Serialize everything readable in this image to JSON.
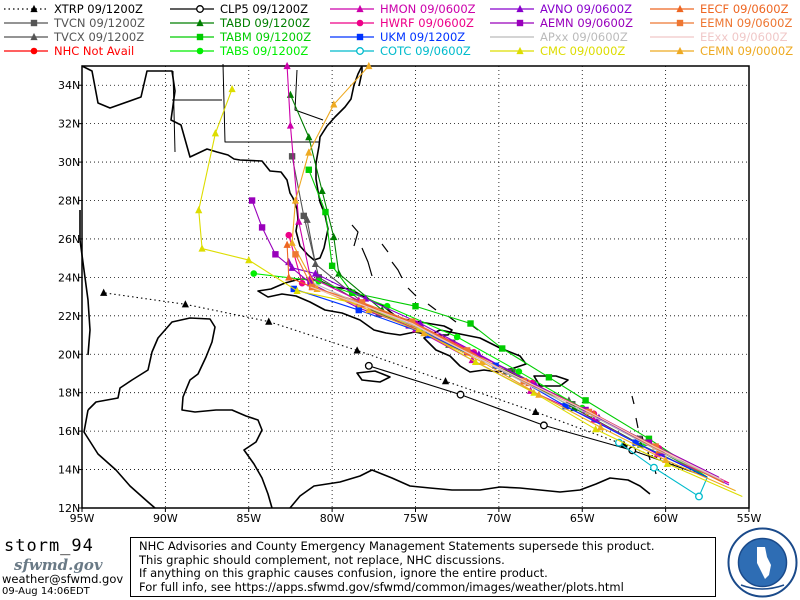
{
  "legend": [
    {
      "label": "XTRP  09/1200Z",
      "color": "#000000",
      "marker": "tri-up",
      "dash": "dot"
    },
    {
      "label": "TVCN  09/1200Z",
      "color": "#555555",
      "marker": "square",
      "dash": "solid"
    },
    {
      "label": "TVCX  09/1200Z",
      "color": "#555555",
      "marker": "tri-up",
      "dash": "solid"
    },
    {
      "label": "NHC  Not Avail",
      "color": "#ff0000",
      "marker": "circle",
      "dash": "solid"
    },
    {
      "label": "CLP5  09/1200Z",
      "color": "#000000",
      "marker": "open-circle",
      "dash": "solid"
    },
    {
      "label": "TABD  09/1200Z",
      "color": "#007f00",
      "marker": "tri-up",
      "dash": "solid"
    },
    {
      "label": "TABM  09/1200Z",
      "color": "#00cc00",
      "marker": "square",
      "dash": "solid"
    },
    {
      "label": "TABS  09/1200Z",
      "color": "#00ee00",
      "marker": "circle",
      "dash": "solid"
    },
    {
      "label": "HMON  09/0600Z",
      "color": "#cc00aa",
      "marker": "tri-up",
      "dash": "solid"
    },
    {
      "label": "HWRF  09/0600Z",
      "color": "#ee0088",
      "marker": "circle",
      "dash": "solid"
    },
    {
      "label": "UKM   09/1200Z",
      "color": "#0033ff",
      "marker": "square",
      "dash": "solid"
    },
    {
      "label": "COTC  09/0600Z",
      "color": "#00bbcc",
      "marker": "open-circle",
      "dash": "solid"
    },
    {
      "label": "AVNO  09/0600Z",
      "color": "#8800cc",
      "marker": "tri-up",
      "dash": "solid"
    },
    {
      "label": "AEMN  09/0600Z",
      "color": "#9900bb",
      "marker": "square",
      "dash": "solid"
    },
    {
      "label": "APxx  09/0600Z",
      "color": "#bbbbbb",
      "marker": "none",
      "dash": "solid"
    },
    {
      "label": "CMC   09/0000Z",
      "color": "#dddd00",
      "marker": "tri-up",
      "dash": "solid"
    },
    {
      "label": "EECF  09/0600Z",
      "color": "#ee6622",
      "marker": "tri-up",
      "dash": "solid"
    },
    {
      "label": "EEMN  09/0600Z",
      "color": "#ee7733",
      "marker": "square",
      "dash": "solid"
    },
    {
      "label": "EExx  09/0600Z",
      "color": "#f0c8c8",
      "marker": "none",
      "dash": "solid"
    },
    {
      "label": "CEMN  09/0000Z",
      "color": "#eeaa22",
      "marker": "tri-up",
      "dash": "solid"
    }
  ],
  "axes": {
    "lat_labels": [
      "12N",
      "14N",
      "16N",
      "18N",
      "20N",
      "22N",
      "24N",
      "26N",
      "28N",
      "30N",
      "32N",
      "34N"
    ],
    "lon_labels": [
      "95W",
      "90W",
      "85W",
      "80W",
      "75W",
      "70W",
      "65W",
      "60W",
      "55W"
    ]
  },
  "footer": {
    "storm_name": "storm_94",
    "logo_text": "sfwmd.gov",
    "email": "weather@sfwmd.gov",
    "timestamp": "09-Aug 14:06EDT",
    "disclaimer_lines": [
      "NHC Advisories and County Emergency Management Statements supersede this product.",
      "This graphic should complement, not replace, NHC discussions.",
      "If anything on this graphic causes confusion, ignore the entire product.",
      "For full info, see  https://apps.sfwmd.gov/sfwmd/common/images/weather/plots.html"
    ]
  },
  "tracks": [
    {
      "model": "XTRP",
      "color": "#000000",
      "dash": "dot",
      "marker": "tri-up",
      "points": [
        [
          -57.5,
          13.6
        ],
        [
          -62.5,
          15.3
        ],
        [
          -67.8,
          17.0
        ],
        [
          -73.2,
          18.6
        ],
        [
          -78.5,
          20.2
        ],
        [
          -83.8,
          21.7
        ],
        [
          -88.8,
          22.6
        ],
        [
          -93.7,
          23.2
        ]
      ]
    },
    {
      "model": "CLP5",
      "color": "#000000",
      "dash": "solid",
      "marker": "open-circle",
      "points": [
        [
          -57.5,
          13.6
        ],
        [
          -62.0,
          15.0
        ],
        [
          -67.3,
          16.3
        ],
        [
          -72.3,
          17.9
        ],
        [
          -77.8,
          19.4
        ]
      ]
    },
    {
      "model": "TVCN",
      "color": "#555555",
      "dash": "solid",
      "marker": "square",
      "points": [
        [
          -57.5,
          13.6
        ],
        [
          -61.6,
          15.6
        ],
        [
          -65.6,
          17.4
        ],
        [
          -69.2,
          19.1
        ],
        [
          -72.8,
          20.6
        ],
        [
          -77.2,
          22.1
        ],
        [
          -80.8,
          24.0
        ],
        [
          -81.7,
          27.2
        ],
        [
          -82.4,
          30.3
        ]
      ]
    },
    {
      "model": "TVCX",
      "color": "#555555",
      "dash": "solid",
      "marker": "tri-up",
      "points": [
        [
          -57.5,
          13.6
        ],
        [
          -61.7,
          15.6
        ],
        [
          -65.8,
          17.6
        ],
        [
          -69.6,
          19.1
        ],
        [
          -73.3,
          20.8
        ],
        [
          -77.6,
          22.3
        ],
        [
          -81.0,
          24.7
        ],
        [
          -81.5,
          27.0
        ]
      ]
    },
    {
      "model": "TABD",
      "color": "#007f00",
      "dash": "solid",
      "marker": "tri-up",
      "points": [
        [
          -57.5,
          13.6
        ],
        [
          -61.5,
          15.3
        ],
        [
          -65.5,
          17.2
        ],
        [
          -69.2,
          19.0
        ],
        [
          -73.0,
          20.5
        ],
        [
          -77.0,
          22.3
        ],
        [
          -79.6,
          24.2
        ],
        [
          -79.9,
          26.1
        ],
        [
          -80.6,
          28.5
        ],
        [
          -81.4,
          31.3
        ],
        [
          -82.5,
          33.5
        ]
      ]
    },
    {
      "model": "TABM",
      "color": "#00cc00",
      "dash": "solid",
      "marker": "square",
      "points": [
        [
          -57.5,
          13.6
        ],
        [
          -61.0,
          15.6
        ],
        [
          -64.8,
          17.6
        ],
        [
          -67.0,
          18.8
        ],
        [
          -69.8,
          20.3
        ],
        [
          -71.7,
          21.6
        ],
        [
          -75.0,
          22.5
        ],
        [
          -78.8,
          23.2
        ],
        [
          -80.0,
          24.6
        ],
        [
          -80.4,
          27.4
        ],
        [
          -81.4,
          29.6
        ]
      ]
    },
    {
      "model": "TABS",
      "color": "#00ee00",
      "dash": "solid",
      "marker": "circle",
      "points": [
        [
          -57.5,
          13.6
        ],
        [
          -61.2,
          15.4
        ],
        [
          -65.0,
          17.2
        ],
        [
          -68.8,
          19.1
        ],
        [
          -72.5,
          20.9
        ],
        [
          -76.7,
          22.5
        ],
        [
          -80.8,
          23.8
        ],
        [
          -84.7,
          24.2
        ]
      ]
    },
    {
      "model": "HMON",
      "color": "#cc00aa",
      "dash": "solid",
      "marker": "tri-up",
      "points": [
        [
          -56.2,
          13.3
        ],
        [
          -60.5,
          14.8
        ],
        [
          -64.3,
          16.6
        ],
        [
          -68.1,
          18.1
        ],
        [
          -71.6,
          19.7
        ],
        [
          -75.0,
          21.3
        ],
        [
          -78.4,
          22.8
        ],
        [
          -81.3,
          24.0
        ],
        [
          -82.0,
          26.9
        ],
        [
          -82.5,
          31.9
        ],
        [
          -82.7,
          35.0
        ]
      ]
    },
    {
      "model": "HWRF",
      "color": "#ee0088",
      "dash": "solid",
      "marker": "circle",
      "points": [
        [
          -56.2,
          13.3
        ],
        [
          -60.4,
          15.1
        ],
        [
          -64.3,
          16.9
        ],
        [
          -68.0,
          18.5
        ],
        [
          -71.5,
          20.1
        ],
        [
          -75.0,
          21.6
        ],
        [
          -78.4,
          22.6
        ],
        [
          -81.8,
          23.7
        ],
        [
          -82.6,
          26.2
        ]
      ]
    },
    {
      "model": "AVNO",
      "color": "#8800cc",
      "dash": "solid",
      "marker": "tri-up",
      "points": [
        [
          -56.2,
          13.2
        ],
        [
          -60.2,
          14.9
        ],
        [
          -64.0,
          16.7
        ],
        [
          -67.8,
          18.4
        ],
        [
          -71.2,
          20.0
        ],
        [
          -74.7,
          21.6
        ],
        [
          -78.0,
          22.9
        ],
        [
          -81.0,
          24.2
        ],
        [
          -82.4,
          24.5
        ],
        [
          -82.6,
          24.8
        ]
      ]
    },
    {
      "model": "AEMN",
      "color": "#9900bb",
      "dash": "solid",
      "marker": "square",
      "points": [
        [
          -56.8,
          13.6
        ],
        [
          -61.0,
          15.4
        ],
        [
          -64.8,
          17.1
        ],
        [
          -68.5,
          18.6
        ],
        [
          -71.9,
          20.1
        ],
        [
          -75.4,
          21.5
        ],
        [
          -78.4,
          22.4
        ],
        [
          -81.3,
          23.7
        ],
        [
          -83.4,
          25.2
        ],
        [
          -84.2,
          26.6
        ],
        [
          -84.8,
          28.0
        ]
      ]
    },
    {
      "model": "UKM",
      "color": "#0033ff",
      "dash": "solid",
      "marker": "square",
      "points": [
        [
          -57.5,
          13.6
        ],
        [
          -61.8,
          15.4
        ],
        [
          -66.0,
          17.3
        ],
        [
          -70.2,
          19.4
        ],
        [
          -74.2,
          21.0
        ],
        [
          -78.4,
          22.3
        ],
        [
          -82.3,
          23.4
        ]
      ]
    },
    {
      "model": "COTC",
      "color": "#00bbcc",
      "dash": "solid",
      "marker": "open-circle",
      "points": [
        [
          -57.5,
          13.6
        ],
        [
          -58.0,
          12.6
        ],
        [
          -60.7,
          14.1
        ],
        [
          -62.8,
          15.4
        ]
      ]
    },
    {
      "model": "CMC",
      "color": "#dddd00",
      "dash": "solid",
      "marker": "tri-up",
      "points": [
        [
          -55.4,
          12.6
        ],
        [
          -59.9,
          14.3
        ],
        [
          -64.2,
          16.1
        ],
        [
          -67.9,
          18.0
        ],
        [
          -71.4,
          19.6
        ],
        [
          -74.8,
          21.3
        ],
        [
          -78.3,
          22.6
        ],
        [
          -82.1,
          23.3
        ],
        [
          -85.0,
          24.9
        ],
        [
          -87.8,
          25.5
        ],
        [
          -88.0,
          27.5
        ],
        [
          -87.0,
          31.5
        ],
        [
          -86.0,
          33.8
        ]
      ]
    },
    {
      "model": "CEMN",
      "color": "#eeaa22",
      "dash": "solid",
      "marker": "tri-up",
      "points": [
        [
          -55.8,
          12.9
        ],
        [
          -60.0,
          14.5
        ],
        [
          -63.9,
          16.2
        ],
        [
          -67.6,
          17.9
        ],
        [
          -71.0,
          19.6
        ],
        [
          -74.5,
          21.1
        ],
        [
          -77.8,
          22.3
        ],
        [
          -80.9,
          23.4
        ],
        [
          -82.4,
          25.8
        ],
        [
          -82.2,
          28.0
        ],
        [
          -81.4,
          30.5
        ],
        [
          -79.9,
          33.0
        ],
        [
          -77.8,
          35.0
        ]
      ]
    },
    {
      "model": "EECF",
      "color": "#ee6622",
      "dash": "solid",
      "marker": "tri-up",
      "points": [
        [
          -56.5,
          13.3
        ],
        [
          -60.4,
          15.0
        ],
        [
          -64.3,
          16.9
        ],
        [
          -68.2,
          18.5
        ],
        [
          -71.8,
          20.1
        ],
        [
          -75.1,
          21.6
        ],
        [
          -78.1,
          22.6
        ],
        [
          -81.2,
          23.5
        ],
        [
          -82.6,
          24.0
        ],
        [
          -82.7,
          25.7
        ]
      ]
    },
    {
      "model": "EEMN",
      "color": "#ee7733",
      "dash": "solid",
      "marker": "square",
      "points": [
        [
          -56.6,
          13.4
        ],
        [
          -60.6,
          15.2
        ],
        [
          -64.6,
          17.0
        ],
        [
          -68.5,
          18.6
        ],
        [
          -71.9,
          20.2
        ],
        [
          -75.2,
          21.7
        ],
        [
          -78.2,
          22.7
        ],
        [
          -81.2,
          23.5
        ],
        [
          -82.2,
          25.2
        ]
      ]
    },
    {
      "model": "APxx",
      "color": "#bbbbbb",
      "dash": "solid",
      "marker": "none",
      "points": [
        [
          -56.5,
          13.4
        ],
        [
          -60.5,
          15.0
        ],
        [
          -64.4,
          16.8
        ],
        [
          -68.2,
          18.4
        ],
        [
          -71.7,
          20.0
        ],
        [
          -75.1,
          21.5
        ],
        [
          -78.3,
          22.6
        ],
        [
          -81.1,
          23.7
        ]
      ]
    },
    {
      "model": "EExx",
      "color": "#f0c8c8",
      "dash": "solid",
      "marker": "none",
      "points": [
        [
          -56.7,
          13.5
        ],
        [
          -60.7,
          15.2
        ],
        [
          -64.6,
          17.0
        ],
        [
          -68.4,
          18.6
        ],
        [
          -71.9,
          20.1
        ],
        [
          -75.2,
          21.6
        ],
        [
          -78.3,
          22.6
        ],
        [
          -81.3,
          23.5
        ]
      ]
    }
  ]
}
